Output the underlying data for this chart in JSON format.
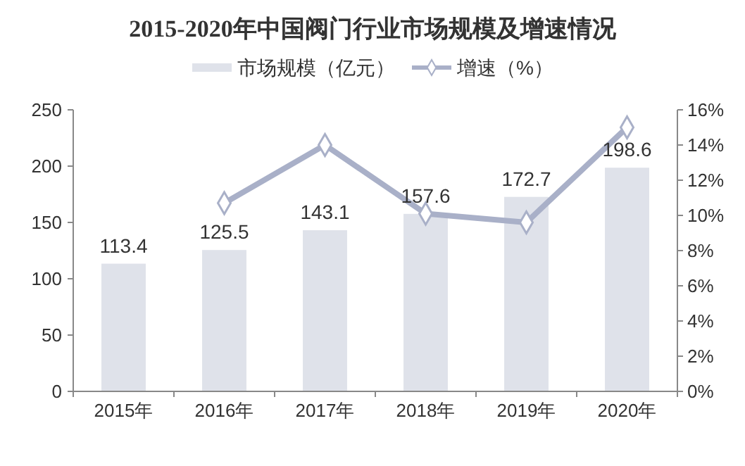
{
  "chart_data": {
    "type": "bar",
    "title": "2015-2020年中国阀门行业市场规模及增速情况",
    "categories": [
      "2015年",
      "2016年",
      "2017年",
      "2018年",
      "2019年",
      "2020年"
    ],
    "series": [
      {
        "name": "市场规模（亿元）",
        "color": "#dfe2ea",
        "values": [
          113.4,
          125.5,
          143.1,
          157.6,
          172.7,
          198.6
        ]
      },
      {
        "name": "增速（%）",
        "type": "line",
        "axis": "y2",
        "color": "#a9b0c8",
        "marker": "diamond",
        "values": [
          null,
          10.7,
          14.0,
          10.1,
          9.6,
          15.0
        ]
      }
    ],
    "ylim": [
      0,
      250
    ],
    "yticks": [
      0,
      50,
      100,
      150,
      200,
      250
    ],
    "y2lim": [
      0,
      16
    ],
    "y2ticks": [
      {
        "value": 0,
        "label": "0%"
      },
      {
        "value": 2,
        "label": "2%"
      },
      {
        "value": 4,
        "label": "4%"
      },
      {
        "value": 6,
        "label": "6%"
      },
      {
        "value": 8,
        "label": "8%"
      },
      {
        "value": 10,
        "label": "10%"
      },
      {
        "value": 12,
        "label": "12%"
      },
      {
        "value": 14,
        "label": "14%"
      },
      {
        "value": 16,
        "label": "16%"
      }
    ],
    "value_labels": [
      "113.4",
      "125.5",
      "143.1",
      "157.6",
      "172.7",
      "198.6"
    ],
    "legend": "top",
    "grid": false
  }
}
